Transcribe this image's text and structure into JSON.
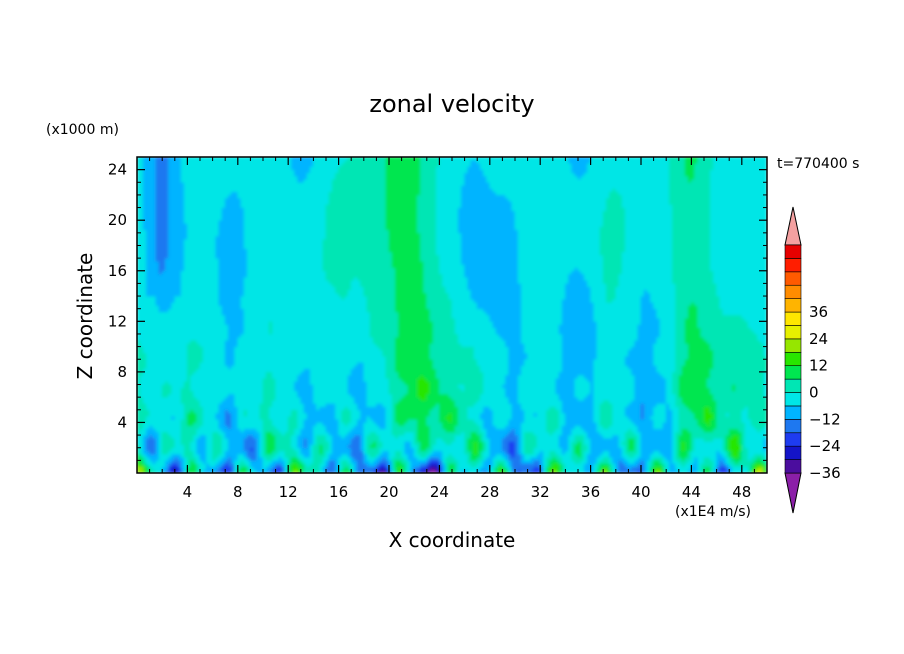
{
  "chart_data": {
    "type": "heatmap",
    "title": "zonal velocity",
    "time_label": "t=770400 s",
    "xlabel": "X coordinate",
    "ylabel": "Z coordinate",
    "x_units": "(x1E4 m/s)",
    "y_units": "(x1000 m)",
    "xlim": [
      0,
      50
    ],
    "ylim": [
      0,
      25
    ],
    "x_ticks": [
      4,
      8,
      12,
      16,
      20,
      24,
      28,
      32,
      36,
      40,
      44,
      48
    ],
    "y_ticks": [
      4,
      8,
      12,
      16,
      20,
      24
    ],
    "colorbar": {
      "min": -42,
      "max": 42,
      "step": 6,
      "tick_values": [
        36,
        24,
        12,
        0,
        -12,
        -24,
        -36
      ],
      "colors": [
        "#8b1fa8",
        "#4b0d9e",
        "#1414c8",
        "#1e3cf0",
        "#1e78f0",
        "#00b4ff",
        "#00e6e6",
        "#00e6b4",
        "#00e650",
        "#28e600",
        "#96e600",
        "#e6f000",
        "#ffe600",
        "#ffb400",
        "#ff8c00",
        "#ff5a00",
        "#ff1e00",
        "#e60000",
        "#f4a0a0"
      ]
    },
    "field_summary": {
      "upper_levels": "mostly 0 to -10 (green/cyan) with bands of 0 to +12 (yellow) near x 18-26 and x 43-47",
      "lower_levels": "oscillating -20 to +15 below z 8",
      "minimum_region": "about -30 near x 20-24, z 0-2"
    }
  }
}
